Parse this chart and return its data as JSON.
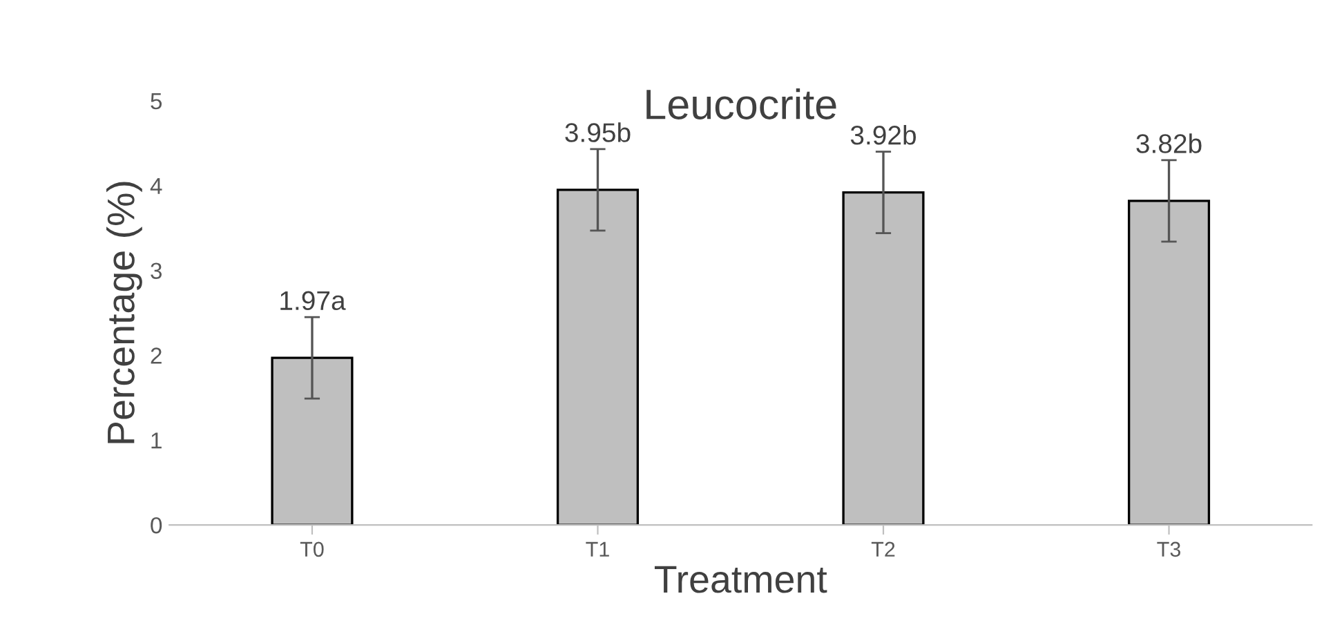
{
  "chart_data": {
    "type": "bar",
    "title": "Leucocrite",
    "xlabel": "Treatment",
    "ylabel": "Percentage (%)",
    "categories": [
      "T0",
      "T1",
      "T2",
      "T3"
    ],
    "series": [
      {
        "color": "#bfbfbf",
        "values": [
          1.97,
          3.95,
          3.92,
          3.82
        ],
        "errors": [
          0.48,
          0.48,
          0.48,
          0.48
        ],
        "value_labels": [
          "1.97a",
          "3.95b",
          "3.92b",
          "3.82b"
        ]
      }
    ],
    "ylim": [
      0,
      5
    ],
    "yticks": [
      0,
      1,
      2,
      3,
      4,
      5
    ],
    "grid": false,
    "legend": false
  }
}
